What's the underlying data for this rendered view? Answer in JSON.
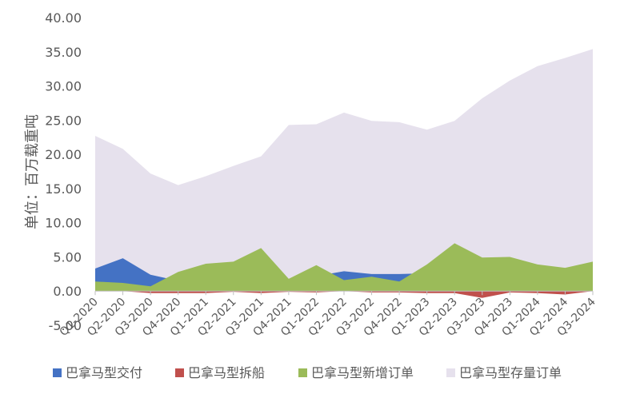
{
  "chart_data": {
    "type": "area",
    "ylabel": "单位：百万载重吨",
    "ylim": [
      -5,
      40
    ],
    "yticks": [
      "-5.00",
      "0.00",
      "5.00",
      "10.00",
      "15.00",
      "20.00",
      "25.00",
      "30.00",
      "35.00",
      "40.00"
    ],
    "categories": [
      "Q1-2020",
      "Q2-2020",
      "Q3-2020",
      "Q4-2020",
      "Q1-2021",
      "Q2-2021",
      "Q3-2021",
      "Q4-2021",
      "Q1-2022",
      "Q2-2022",
      "Q3-2022",
      "Q4-2022",
      "Q1-2023",
      "Q2-2023",
      "Q3-2023",
      "Q4-2023",
      "Q1-2024",
      "Q2-2024",
      "Q3-2024"
    ],
    "series": [
      {
        "name": "巴拿马型交付",
        "color": "#4472C4",
        "values": [
          3.3,
          4.8,
          2.4,
          1.5,
          1.9,
          1.5,
          2.3,
          1.2,
          2.2,
          2.9,
          2.5,
          2.5,
          2.6,
          2.0,
          1.8,
          1.4,
          1.3,
          1.0,
          1.2
        ]
      },
      {
        "name": "巴拿马型拆船",
        "color": "#C0504D",
        "values": [
          0,
          0,
          -0.3,
          -0.3,
          -0.3,
          -0.1,
          -0.3,
          -0.1,
          -0.2,
          0,
          -0.2,
          -0.2,
          -0.3,
          -0.3,
          -1.0,
          -0.2,
          -0.3,
          -0.5,
          0
        ]
      },
      {
        "name": "巴拿马型新增订单",
        "color": "#9BBB59",
        "values": [
          1.4,
          1.2,
          0.7,
          2.8,
          4.0,
          4.3,
          6.3,
          1.8,
          3.8,
          1.6,
          2.1,
          1.4,
          3.9,
          7.0,
          4.9,
          5.0,
          3.9,
          3.4,
          4.3
        ]
      },
      {
        "name": "巴拿马型存量订单",
        "color": "#E6E1ED",
        "values": [
          22.7,
          20.8,
          17.2,
          15.5,
          16.8,
          18.3,
          19.7,
          24.3,
          24.4,
          26.1,
          24.9,
          24.7,
          23.6,
          24.9,
          28.2,
          30.8,
          32.9,
          34.1,
          35.4
        ]
      }
    ]
  }
}
